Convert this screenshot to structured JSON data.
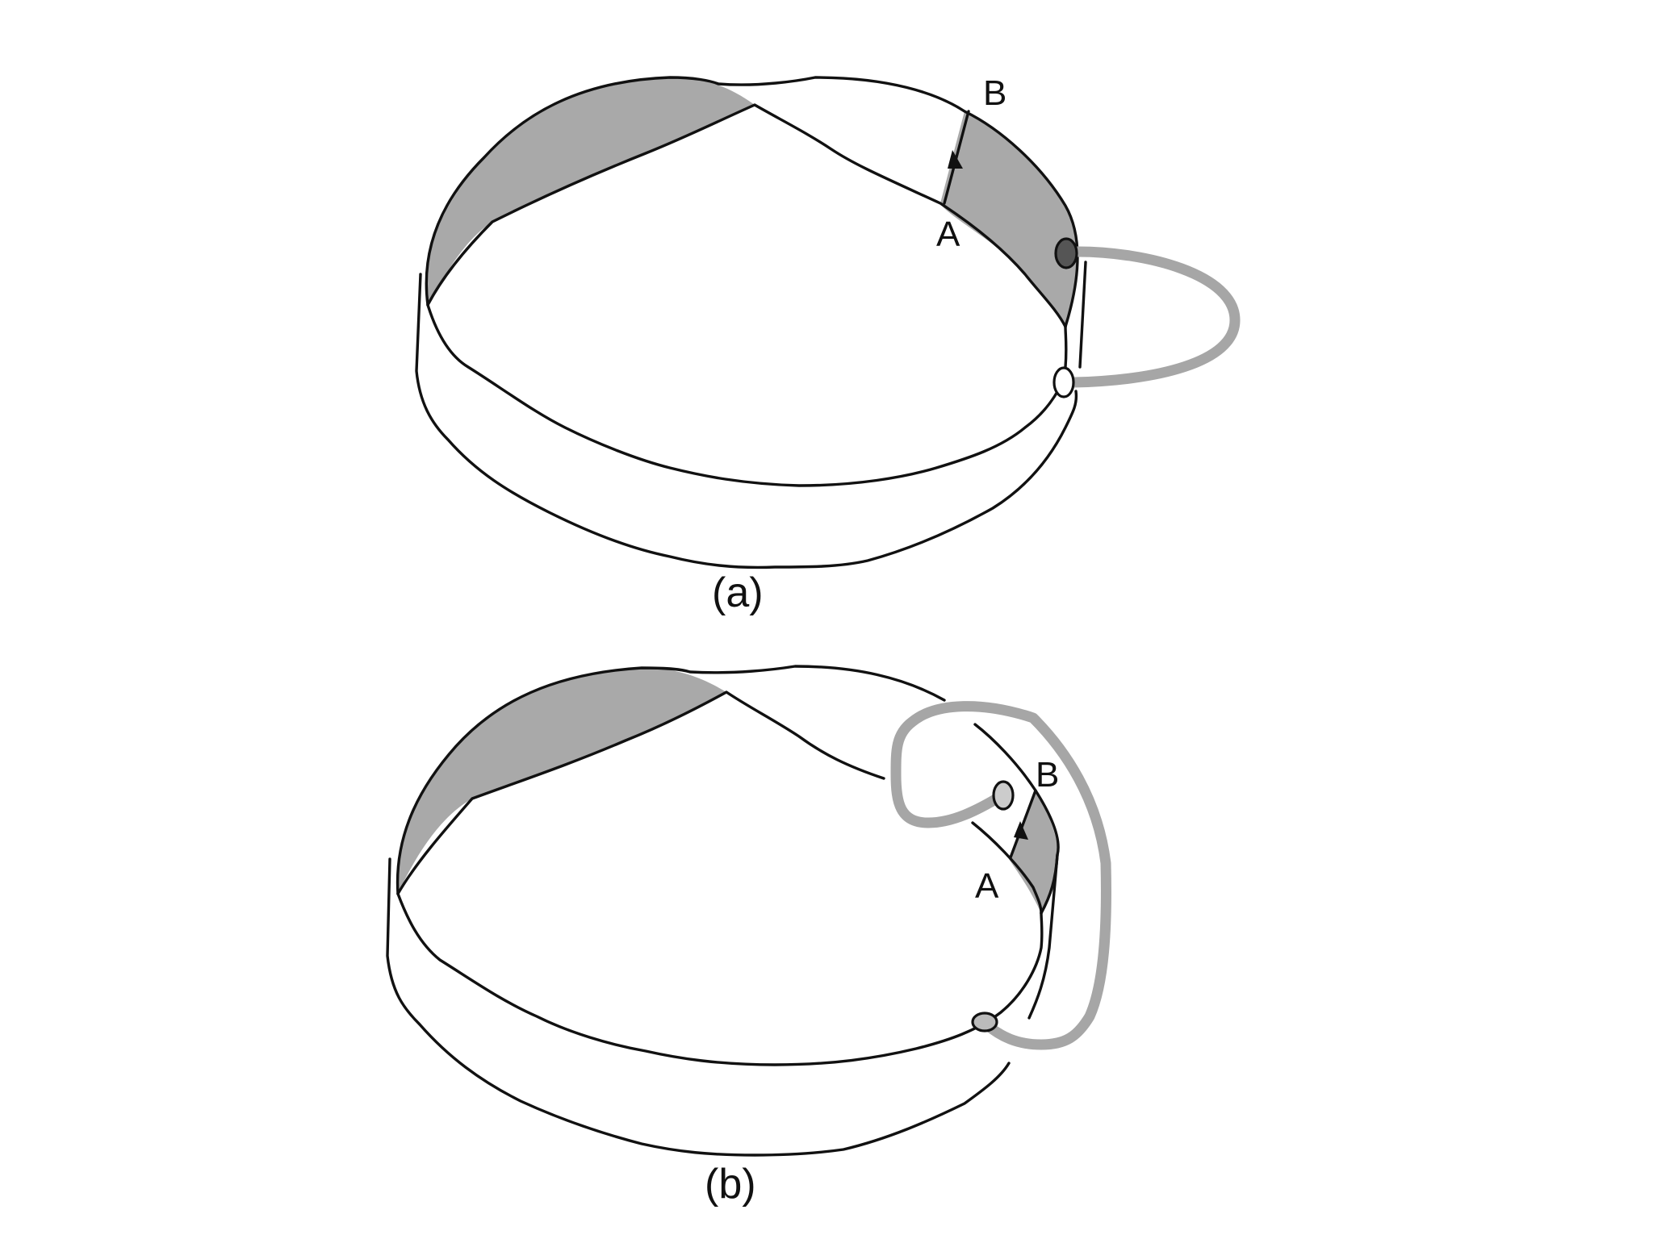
{
  "panels": [
    {
      "id": "a",
      "caption": "(a)",
      "point_start": "A",
      "point_end": "B"
    },
    {
      "id": "b",
      "caption": "(b)",
      "point_start": "A",
      "point_end": "B"
    }
  ],
  "colors": {
    "outline": "#111111",
    "shade": "#a9a9a9",
    "tube": "#a6a6a6",
    "dark_hole": "#555555"
  }
}
